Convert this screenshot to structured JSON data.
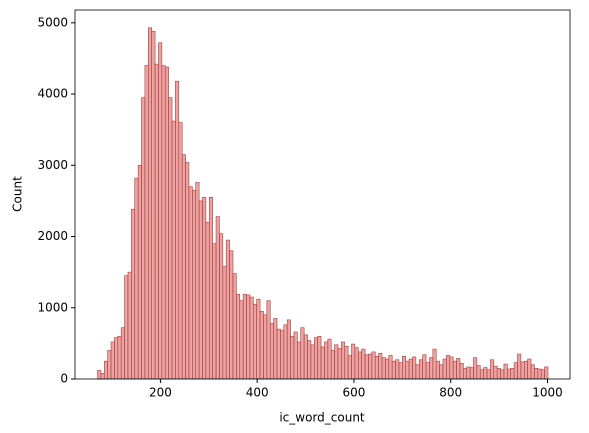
{
  "chart_data": {
    "type": "histogram",
    "x_label": "ic_word_count",
    "y_label": "Count",
    "bins": [
      70,
      77,
      84,
      91,
      98,
      105,
      112,
      119,
      126,
      133,
      140,
      147,
      154,
      161,
      168,
      175,
      182,
      189,
      196,
      203,
      210,
      217,
      224,
      231,
      238,
      245,
      252,
      259,
      266,
      273,
      280,
      287,
      294,
      301,
      308,
      315,
      322,
      329,
      336,
      343,
      350,
      357,
      364,
      371,
      378,
      385,
      392,
      399,
      406,
      413,
      420,
      427,
      434,
      441,
      448,
      455,
      462,
      469,
      476,
      483,
      490,
      497,
      504,
      511,
      518,
      525,
      532,
      539,
      546,
      553,
      560,
      567,
      574,
      581,
      588,
      595,
      602,
      609,
      616,
      623,
      630,
      637,
      644,
      651,
      658,
      665,
      672,
      679,
      686,
      693,
      700,
      707,
      714,
      721,
      728,
      735,
      742,
      749,
      756,
      763,
      770,
      777,
      784,
      791,
      798,
      805,
      812,
      819,
      826,
      833,
      840,
      847,
      854,
      861,
      868,
      875,
      882,
      889,
      896,
      903,
      910,
      917,
      924,
      931,
      938,
      945,
      952,
      959,
      966,
      973,
      980,
      987,
      994,
      1001
    ],
    "values": [
      120,
      80,
      250,
      400,
      520,
      580,
      600,
      720,
      1450,
      1500,
      2380,
      2820,
      3000,
      3950,
      4400,
      4930,
      4880,
      4420,
      4720,
      4400,
      4380,
      3950,
      3620,
      4180,
      3600,
      3150,
      3040,
      2700,
      2650,
      2760,
      2500,
      2550,
      2200,
      2550,
      1900,
      2280,
      2040,
      1580,
      1950,
      1800,
      1480,
      1190,
      1100,
      1190,
      1180,
      1150,
      1050,
      1120,
      950,
      900,
      1100,
      780,
      850,
      700,
      680,
      760,
      830,
      600,
      660,
      520,
      720,
      620,
      540,
      480,
      580,
      600,
      450,
      520,
      560,
      400,
      480,
      430,
      520,
      460,
      330,
      490,
      440,
      380,
      420,
      340,
      350,
      380,
      320,
      360,
      300,
      280,
      330,
      250,
      270,
      230,
      320,
      250,
      280,
      310,
      200,
      270,
      340,
      230,
      300,
      420,
      250,
      200,
      280,
      330,
      310,
      250,
      290,
      220,
      150,
      170,
      160,
      300,
      190,
      130,
      160,
      130,
      270,
      180,
      150,
      130,
      210,
      140,
      150,
      230,
      350,
      240,
      250,
      280,
      200,
      150,
      140,
      130,
      170
    ],
    "color": "#f08080",
    "xlim": [
      23.5,
      1046.5
    ],
    "ylim": [
      0,
      5180
    ],
    "xticks": [
      200,
      400,
      600,
      800,
      1000
    ],
    "yticks": [
      0,
      1000,
      2000,
      3000,
      4000,
      5000
    ]
  }
}
